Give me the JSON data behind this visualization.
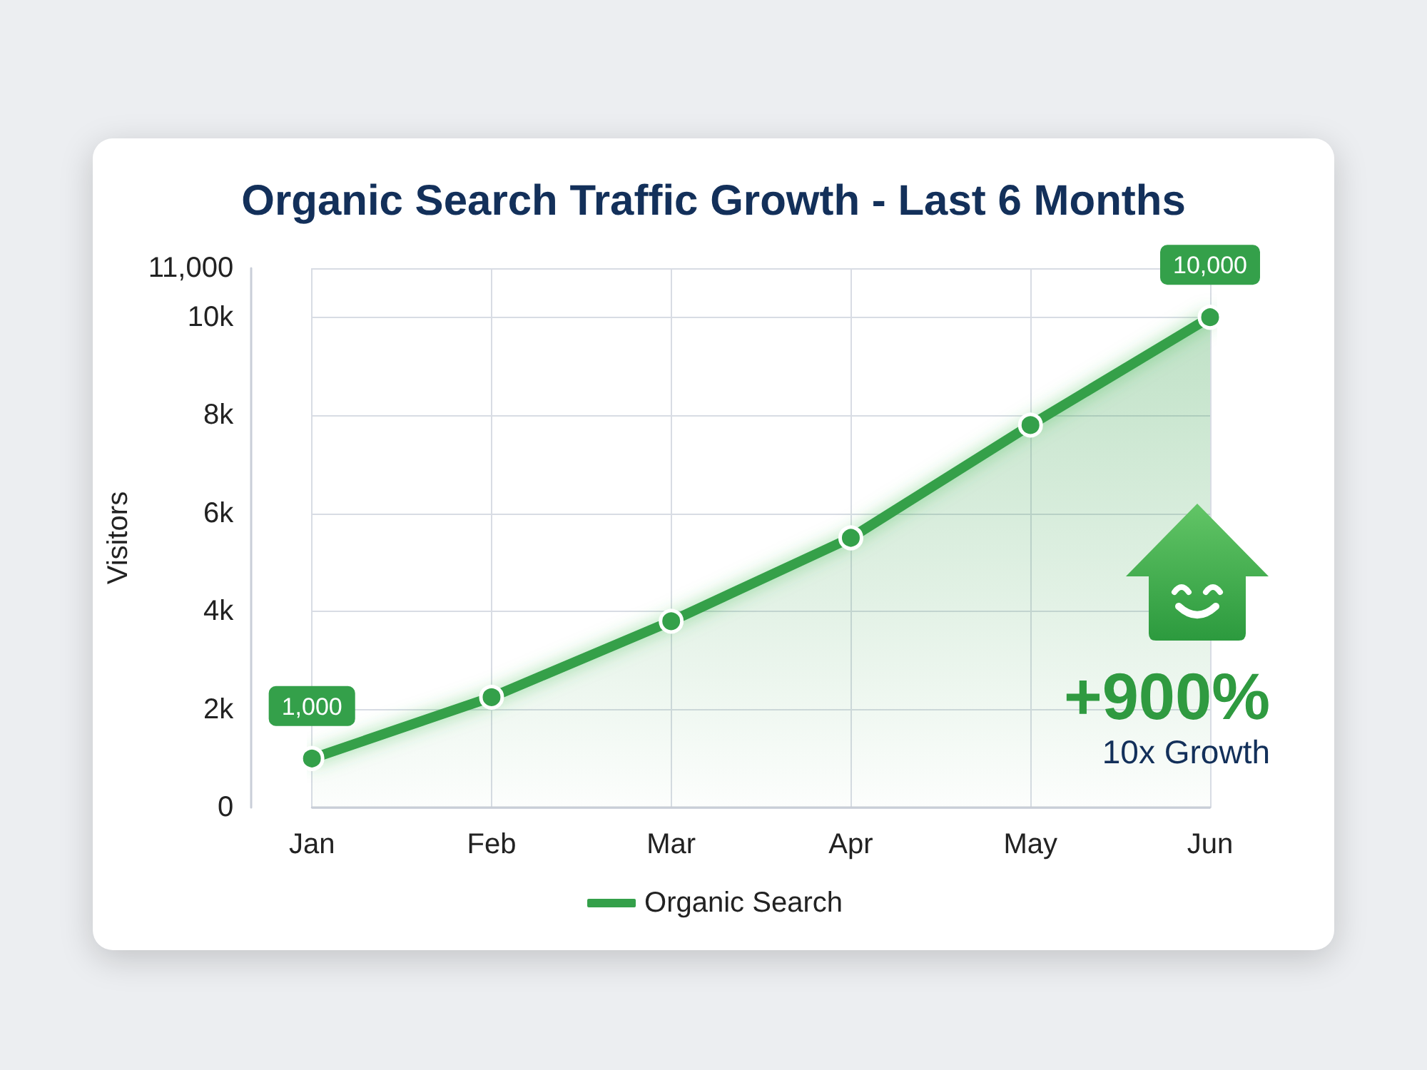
{
  "chart_data": {
    "type": "area",
    "title": "Organic Search Traffic Growth - Last 6 Months",
    "ylabel": "Visitors",
    "categories": [
      "Jan",
      "Feb",
      "Mar",
      "Apr",
      "May",
      "Jun"
    ],
    "series": [
      {
        "name": "Organic Search",
        "color": "#34a04a",
        "values": [
          1000,
          2250,
          3800,
          5500,
          7800,
          10000
        ],
        "value_labels": [
          "1,000",
          null,
          null,
          null,
          null,
          "10,000"
        ]
      }
    ],
    "ylim": [
      0,
      11000
    ],
    "yticks": [
      0,
      {
        "value": 2000,
        "label": "2k"
      },
      {
        "value": 4000,
        "label": "4k"
      },
      {
        "value": 6000,
        "label": "6k"
      },
      {
        "value": 8000,
        "label": "8k"
      },
      {
        "value": 10000,
        "label": "10k"
      },
      {
        "value": 11000,
        "label": "11,000"
      }
    ],
    "grid": true,
    "legend": "bottom",
    "marker": "circle",
    "annotations": [
      "+900%",
      "10x Growth"
    ]
  }
}
